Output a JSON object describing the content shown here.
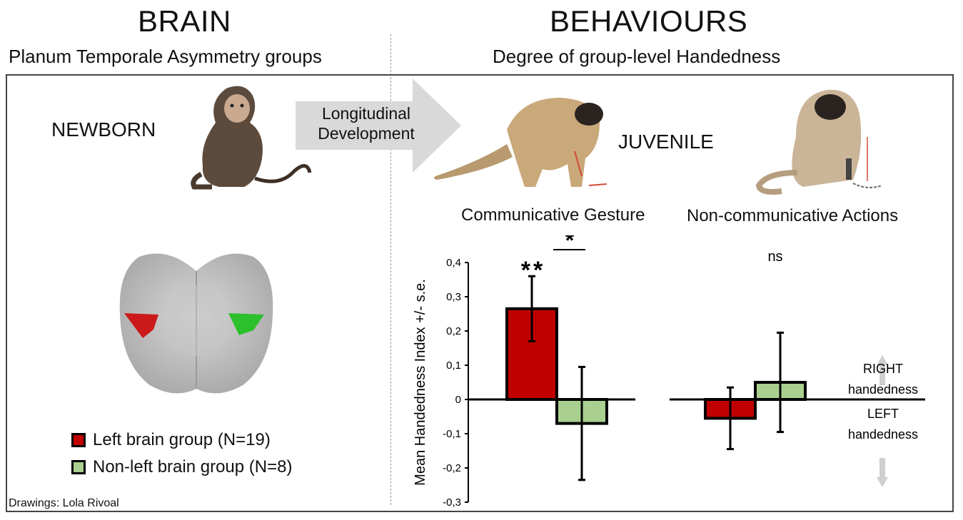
{
  "headers": {
    "brain_title": "BRAIN",
    "brain_subtitle": "Planum Temporale Asymmetry groups",
    "behaviours_title": "BEHAVIOURS",
    "behaviours_subtitle": "Degree of group-level Handedness"
  },
  "labels": {
    "newborn": "NEWBORN",
    "juvenile": "JUVENILE",
    "arrow_line1": "Longitudinal",
    "arrow_line2": "Development",
    "communicative": "Communicative Gesture",
    "noncommunicative": "Non-communicative Actions",
    "credit": "Drawings: Lola Rivoal"
  },
  "legend": [
    {
      "label": "Left brain group (N=19)",
      "color": "#c00000"
    },
    {
      "label": "Non-left brain group (N=8)",
      "color": "#a9d08e"
    }
  ],
  "direction_labels": {
    "right_line1": "RIGHT",
    "right_line2": "handedness",
    "left_line1": "LEFT",
    "left_line2": "handedness"
  },
  "colors": {
    "left_group": "#c00000",
    "nonleft_group": "#a9d08e",
    "arrow_fill": "#d9d9d9",
    "brain_gray": "#bcbcbc"
  },
  "icons": [
    "baby-baboon-drawing",
    "gesturing-baboon-drawing",
    "manipulating-baboon-drawing",
    "brain-scan-image"
  ],
  "chart_data": {
    "type": "bar",
    "ylabel": "Mean Handedness Index +/- s.e.",
    "ylim": [
      -0.3,
      0.4
    ],
    "yticks": [
      "0,4",
      "0,3",
      "0,2",
      "0,1",
      "0",
      "-0,1",
      "-0,2",
      "-0,3"
    ],
    "categories": [
      "Communicative Gesture",
      "Non-communicative Actions"
    ],
    "series": [
      {
        "name": "Left brain group (N=19)",
        "values": [
          0.265,
          -0.055
        ],
        "errors": [
          0.095,
          0.09
        ]
      },
      {
        "name": "Non-left brain group (N=8)",
        "values": [
          -0.07,
          0.05
        ],
        "errors": [
          0.165,
          0.145
        ]
      }
    ],
    "annotations": {
      "comm_significance": "*",
      "left_bar_significance": "**",
      "noncomm_significance": "ns"
    }
  }
}
